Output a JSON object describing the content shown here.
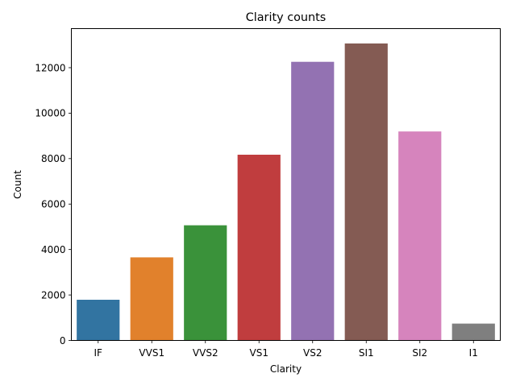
{
  "chart_data": {
    "type": "bar",
    "title": "Clarity counts",
    "xlabel": "Clarity",
    "ylabel": "Count",
    "categories": [
      "IF",
      "VVS1",
      "VVS2",
      "VS1",
      "VS2",
      "SI1",
      "SI2",
      "I1"
    ],
    "values": [
      1790,
      3655,
      5066,
      8171,
      12258,
      13065,
      9194,
      741
    ],
    "colors": [
      "#3274a1",
      "#e1812c",
      "#3a923a",
      "#c03d3e",
      "#9372b2",
      "#845b53",
      "#d684bd",
      "#7f7f7f"
    ],
    "ylim": [
      0,
      13719
    ],
    "yticks": [
      0,
      2000,
      4000,
      6000,
      8000,
      10000,
      12000
    ],
    "grid": false,
    "legend": "none"
  }
}
